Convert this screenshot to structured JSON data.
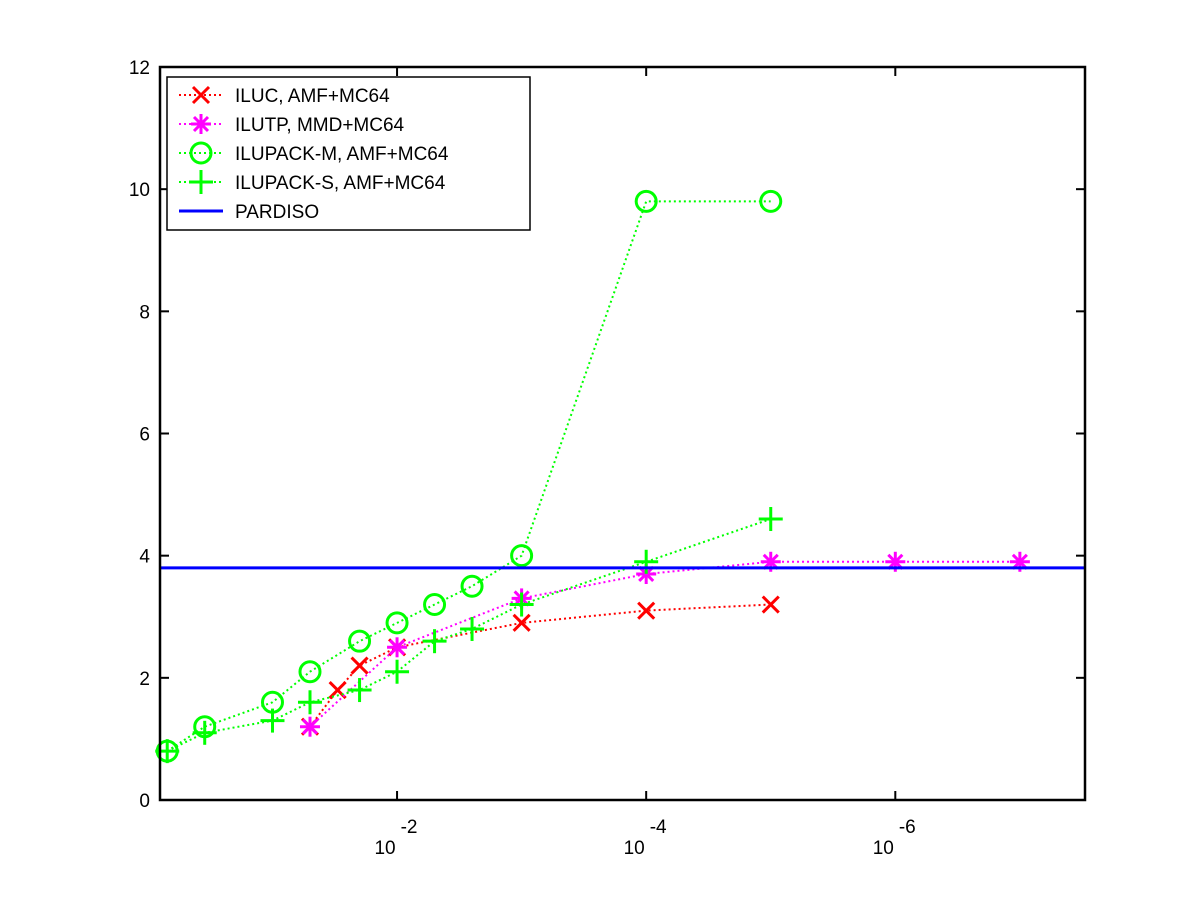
{
  "chart_data": {
    "type": "line",
    "x_scale": "log-reversed",
    "xlim": [
      0.8,
      3e-08
    ],
    "ylim": [
      0,
      12
    ],
    "x_ticks": [
      {
        "value": 0.01,
        "base": "10",
        "exp": "-2"
      },
      {
        "value": 0.0001,
        "base": "10",
        "exp": "-4"
      },
      {
        "value": 1e-06,
        "base": "10",
        "exp": "-6"
      }
    ],
    "y_ticks": [
      {
        "value": 0,
        "label": "0"
      },
      {
        "value": 2,
        "label": "2"
      },
      {
        "value": 4,
        "label": "4"
      },
      {
        "value": 6,
        "label": "6"
      },
      {
        "value": 8,
        "label": "8"
      },
      {
        "value": 10,
        "label": "10"
      },
      {
        "value": 12,
        "label": "12"
      }
    ],
    "legend_position": "top-left",
    "series": [
      {
        "name": "ILUC, AMF+MC64",
        "color": "#ff0000",
        "marker": "x",
        "line": "dotted",
        "points": [
          [
            0.05,
            1.2
          ],
          [
            0.03,
            1.8
          ],
          [
            0.02,
            2.2
          ],
          [
            0.01,
            2.5
          ],
          [
            0.001,
            2.9
          ],
          [
            0.0001,
            3.1
          ],
          [
            1e-05,
            3.2
          ]
        ]
      },
      {
        "name": "ILUTP, MMD+MC64",
        "color": "#ff00ff",
        "marker": "star",
        "line": "dotted",
        "points": [
          [
            0.05,
            1.2
          ],
          [
            0.01,
            2.5
          ],
          [
            0.001,
            3.3
          ],
          [
            0.0001,
            3.7
          ],
          [
            1e-05,
            3.9
          ],
          [
            1e-06,
            3.9
          ],
          [
            1e-07,
            3.9
          ]
        ]
      },
      {
        "name": "ILUPACK-M, AMF+MC64",
        "color": "#00ff00",
        "marker": "circle",
        "line": "dotted",
        "points": [
          [
            0.7,
            0.8
          ],
          [
            0.35,
            1.2
          ],
          [
            0.1,
            1.6
          ],
          [
            0.05,
            2.1
          ],
          [
            0.02,
            2.6
          ],
          [
            0.01,
            2.9
          ],
          [
            0.005,
            3.2
          ],
          [
            0.0025,
            3.5
          ],
          [
            0.001,
            4.0
          ],
          [
            0.0001,
            9.8
          ],
          [
            1e-05,
            9.8
          ]
        ]
      },
      {
        "name": "ILUPACK-S, AMF+MC64",
        "color": "#00ff00",
        "marker": "plus",
        "line": "dotted",
        "points": [
          [
            0.7,
            0.8
          ],
          [
            0.35,
            1.1
          ],
          [
            0.1,
            1.3
          ],
          [
            0.05,
            1.6
          ],
          [
            0.02,
            1.8
          ],
          [
            0.01,
            2.1
          ],
          [
            0.005,
            2.6
          ],
          [
            0.0025,
            2.8
          ],
          [
            0.001,
            3.2
          ],
          [
            0.0001,
            3.9
          ],
          [
            1e-05,
            4.6
          ]
        ]
      },
      {
        "name": "PARDISO",
        "color": "#0000ff",
        "marker": "none",
        "line": "solid",
        "y_constant": 3.8
      }
    ]
  }
}
